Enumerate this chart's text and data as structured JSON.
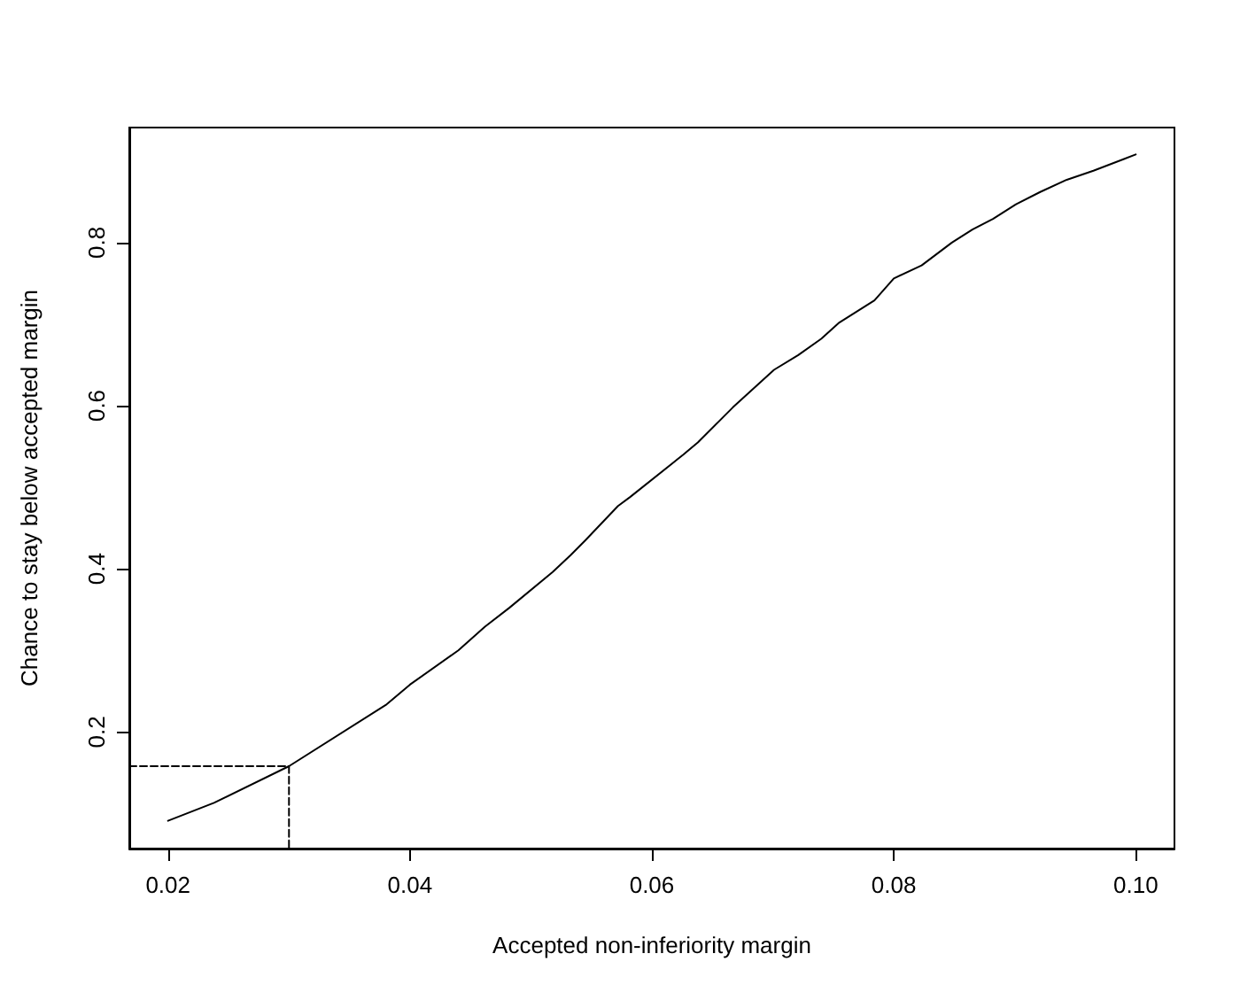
{
  "chart_data": {
    "type": "line",
    "xlabel": "Accepted non-inferiority margin",
    "ylabel": "Chance to stay below accepted margin",
    "xlim": [
      0.0168,
      0.1032
    ],
    "xticks": [
      {
        "value": 0.02,
        "label": "0.02"
      },
      {
        "value": 0.04,
        "label": "0.04"
      },
      {
        "value": 0.06,
        "label": "0.06"
      },
      {
        "value": 0.08,
        "label": "0.08"
      },
      {
        "value": 0.1,
        "label": "0.10"
      }
    ],
    "ylim": [
      0.057,
      0.941
    ],
    "yticks": [
      0.2,
      0.4,
      0.6,
      0.8
    ],
    "marker": "none",
    "series": [
      {
        "color": "#000000",
        "line_style": "solid",
        "x": [
          0.02,
          0.0238,
          0.03,
          0.038,
          0.04,
          0.044,
          0.0462,
          0.0482,
          0.0518,
          0.0533,
          0.0545,
          0.0572,
          0.0582,
          0.0626,
          0.0638,
          0.0667,
          0.0701,
          0.0721,
          0.074,
          0.0755,
          0.0784,
          0.08,
          0.0823,
          0.0848,
          0.0865,
          0.0882,
          0.0901,
          0.0921,
          0.0943,
          0.0965,
          0.1
        ],
        "values": [
          0.091,
          0.113,
          0.158,
          0.233,
          0.258,
          0.3,
          0.329,
          0.352,
          0.396,
          0.417,
          0.435,
          0.477,
          0.488,
          0.54,
          0.555,
          0.598,
          0.644,
          0.662,
          0.682,
          0.702,
          0.729,
          0.756,
          0.772,
          0.8,
          0.816,
          0.829,
          0.847,
          0.862,
          0.877,
          0.888,
          0.908
        ]
      },
      {
        "color": "#000000",
        "line_style": "dashed",
        "x": [
          0.0168,
          0.03,
          0.03
        ],
        "values": [
          0.158,
          0.158,
          0.057
        ]
      }
    ]
  }
}
